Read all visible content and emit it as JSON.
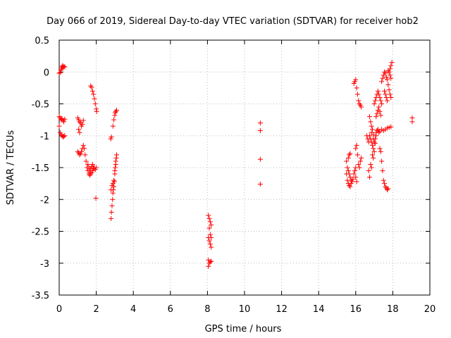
{
  "chart_data": {
    "type": "scatter",
    "title": "Day 066 of 2019, Sidereal Day-to-day VTEC variation (SDTVAR) for receiver hob2",
    "xlabel": "GPS time / hours",
    "ylabel": "SDTVAR / TECUs",
    "xlim": [
      0,
      20
    ],
    "ylim": [
      -3.5,
      0.5
    ],
    "xticks": [
      0,
      2,
      4,
      6,
      8,
      10,
      12,
      14,
      16,
      18,
      20
    ],
    "xtick_labels": [
      "0",
      "2",
      "4",
      "6",
      "8",
      "10",
      "12",
      "14",
      "16",
      "18",
      "20"
    ],
    "yticks": [
      -3.5,
      -3,
      -2.5,
      -2,
      -1.5,
      -1,
      -0.5,
      0,
      0.5
    ],
    "ytick_labels": [
      "-3.5",
      "-3",
      "-2.5",
      "-2",
      "-1.5",
      "-1",
      "-0.5",
      "0",
      "0.5"
    ],
    "grid": true,
    "marker": "+",
    "marker_color": "#ff0000",
    "series": [
      {
        "name": "SDTVAR",
        "points": [
          [
            0.0,
            -0.02
          ],
          [
            0.05,
            -0.01
          ],
          [
            0.1,
            0.03
          ],
          [
            0.15,
            0.08
          ],
          [
            0.2,
            0.07
          ],
          [
            0.25,
            0.09
          ],
          [
            0.3,
            0.08
          ],
          [
            0.12,
            0.05
          ],
          [
            0.18,
            0.1
          ],
          [
            0.0,
            -0.7
          ],
          [
            0.05,
            -0.72
          ],
          [
            0.1,
            -0.75
          ],
          [
            0.15,
            -0.73
          ],
          [
            0.2,
            -0.76
          ],
          [
            0.25,
            -0.78
          ],
          [
            0.3,
            -0.74
          ],
          [
            0.0,
            -0.85
          ],
          [
            0.05,
            -0.95
          ],
          [
            0.1,
            -0.98
          ],
          [
            0.15,
            -1.0
          ],
          [
            0.2,
            -1.02
          ],
          [
            0.25,
            -1.01
          ],
          [
            0.3,
            -1.0
          ],
          [
            1.0,
            -0.72
          ],
          [
            1.05,
            -0.75
          ],
          [
            1.1,
            -0.78
          ],
          [
            1.15,
            -0.8
          ],
          [
            1.2,
            -0.85
          ],
          [
            1.25,
            -0.82
          ],
          [
            1.3,
            -0.76
          ],
          [
            1.05,
            -0.9
          ],
          [
            1.1,
            -0.95
          ],
          [
            1.0,
            -1.25
          ],
          [
            1.05,
            -1.27
          ],
          [
            1.1,
            -1.3
          ],
          [
            1.15,
            -1.28
          ],
          [
            1.2,
            -1.25
          ],
          [
            1.25,
            -1.2
          ],
          [
            1.3,
            -1.15
          ],
          [
            1.35,
            -1.2
          ],
          [
            1.4,
            -1.3
          ],
          [
            1.45,
            -1.4
          ],
          [
            1.5,
            -1.5
          ],
          [
            1.55,
            -1.55
          ],
          [
            1.6,
            -1.6
          ],
          [
            1.65,
            -1.62
          ],
          [
            1.7,
            -1.6
          ],
          [
            1.75,
            -1.58
          ],
          [
            1.8,
            -1.55
          ],
          [
            1.85,
            -1.52
          ],
          [
            1.9,
            -1.5
          ],
          [
            1.95,
            -1.53
          ],
          [
            2.0,
            -1.5
          ],
          [
            1.55,
            -1.45
          ],
          [
            1.6,
            -1.5
          ],
          [
            1.65,
            -1.55
          ],
          [
            1.7,
            -1.52
          ],
          [
            1.75,
            -1.48
          ],
          [
            1.8,
            -1.45
          ],
          [
            1.85,
            -1.5
          ],
          [
            1.7,
            -0.22
          ],
          [
            1.75,
            -0.24
          ],
          [
            1.8,
            -0.3
          ],
          [
            1.85,
            -0.35
          ],
          [
            1.9,
            -0.42
          ],
          [
            1.95,
            -0.5
          ],
          [
            2.0,
            -0.58
          ],
          [
            2.02,
            -0.62
          ],
          [
            1.98,
            -1.98
          ],
          [
            2.8,
            -2.3
          ],
          [
            2.82,
            -2.2
          ],
          [
            2.85,
            -2.1
          ],
          [
            2.88,
            -2.0
          ],
          [
            2.9,
            -1.9
          ],
          [
            2.92,
            -1.85
          ],
          [
            2.95,
            -1.8
          ],
          [
            2.8,
            -1.85
          ],
          [
            2.85,
            -1.78
          ],
          [
            2.9,
            -1.75
          ],
          [
            2.95,
            -1.7
          ],
          [
            2.98,
            -1.72
          ],
          [
            3.0,
            -1.6
          ],
          [
            3.02,
            -1.5
          ],
          [
            3.05,
            -1.4
          ],
          [
            3.08,
            -1.35
          ],
          [
            3.1,
            -1.3
          ],
          [
            3.0,
            -1.55
          ],
          [
            3.05,
            -1.45
          ],
          [
            2.78,
            -1.05
          ],
          [
            2.82,
            -1.02
          ],
          [
            2.9,
            -0.85
          ],
          [
            2.95,
            -0.75
          ],
          [
            3.0,
            -0.68
          ],
          [
            3.05,
            -0.62
          ],
          [
            3.1,
            -0.6
          ],
          [
            3.02,
            -0.64
          ],
          [
            8.05,
            -2.25
          ],
          [
            8.1,
            -2.3
          ],
          [
            8.15,
            -2.35
          ],
          [
            8.2,
            -2.4
          ],
          [
            8.1,
            -2.45
          ],
          [
            8.15,
            -2.55
          ],
          [
            8.2,
            -2.6
          ],
          [
            8.1,
            -2.65
          ],
          [
            8.15,
            -2.7
          ],
          [
            8.2,
            -2.75
          ],
          [
            8.05,
            -2.6
          ],
          [
            8.05,
            -2.95
          ],
          [
            8.1,
            -3.0
          ],
          [
            8.15,
            -2.98
          ],
          [
            8.2,
            -2.97
          ],
          [
            8.05,
            -3.05
          ],
          [
            10.85,
            -0.8
          ],
          [
            10.85,
            -0.92
          ],
          [
            10.85,
            -1.37
          ],
          [
            10.85,
            -1.76
          ],
          [
            15.5,
            -1.4
          ],
          [
            15.55,
            -1.5
          ],
          [
            15.6,
            -1.55
          ],
          [
            15.65,
            -1.6
          ],
          [
            15.7,
            -1.65
          ],
          [
            15.75,
            -1.7
          ],
          [
            15.8,
            -1.72
          ],
          [
            15.85,
            -1.68
          ],
          [
            15.9,
            -1.6
          ],
          [
            15.95,
            -1.55
          ],
          [
            16.0,
            -1.5
          ],
          [
            15.5,
            -1.6
          ],
          [
            15.55,
            -1.7
          ],
          [
            15.6,
            -1.75
          ],
          [
            15.65,
            -1.78
          ],
          [
            15.7,
            -1.8
          ],
          [
            15.75,
            -1.75
          ],
          [
            15.6,
            -1.35
          ],
          [
            15.65,
            -1.3
          ],
          [
            15.7,
            -1.28
          ],
          [
            16.0,
            -1.2
          ],
          [
            16.05,
            -1.15
          ],
          [
            16.1,
            -1.3
          ],
          [
            16.15,
            -1.45
          ],
          [
            16.2,
            -1.5
          ],
          [
            16.25,
            -1.4
          ],
          [
            16.3,
            -1.35
          ],
          [
            16.0,
            -1.65
          ],
          [
            16.05,
            -1.72
          ],
          [
            15.9,
            -0.18
          ],
          [
            15.95,
            -0.15
          ],
          [
            16.0,
            -0.12
          ],
          [
            16.05,
            -0.25
          ],
          [
            16.1,
            -0.35
          ],
          [
            16.15,
            -0.45
          ],
          [
            16.2,
            -0.5
          ],
          [
            16.25,
            -0.52
          ],
          [
            16.3,
            -0.55
          ],
          [
            16.75,
            -0.7
          ],
          [
            16.8,
            -0.78
          ],
          [
            16.85,
            -0.85
          ],
          [
            16.9,
            -0.9
          ],
          [
            16.95,
            -0.98
          ],
          [
            16.8,
            -1.05
          ],
          [
            16.85,
            -1.1
          ],
          [
            16.9,
            -1.15
          ],
          [
            16.95,
            -1.2
          ],
          [
            17.0,
            -1.25
          ],
          [
            16.8,
            -1.45
          ],
          [
            16.85,
            -1.5
          ],
          [
            16.7,
            -1.55
          ],
          [
            16.75,
            -1.65
          ],
          [
            16.9,
            -1.3
          ],
          [
            16.95,
            -1.35
          ],
          [
            17.0,
            -1.1
          ],
          [
            17.05,
            -1.05
          ],
          [
            17.1,
            -1.0
          ],
          [
            17.0,
            -0.5
          ],
          [
            17.05,
            -0.45
          ],
          [
            17.1,
            -0.4
          ],
          [
            17.15,
            -0.35
          ],
          [
            17.2,
            -0.3
          ],
          [
            17.25,
            -0.35
          ],
          [
            17.3,
            -0.4
          ],
          [
            17.35,
            -0.45
          ],
          [
            17.4,
            -0.5
          ],
          [
            17.1,
            -0.7
          ],
          [
            17.15,
            -0.65
          ],
          [
            17.2,
            -0.6
          ],
          [
            17.25,
            -0.55
          ],
          [
            17.3,
            -0.62
          ],
          [
            17.35,
            -0.68
          ],
          [
            17.1,
            -0.95
          ],
          [
            17.15,
            -0.92
          ],
          [
            17.2,
            -0.9
          ],
          [
            17.25,
            -0.95
          ],
          [
            17.3,
            -0.93
          ],
          [
            17.4,
            -0.9
          ],
          [
            17.5,
            -0.92
          ],
          [
            17.6,
            -0.9
          ],
          [
            17.7,
            -0.88
          ],
          [
            17.8,
            -0.87
          ],
          [
            17.9,
            -0.86
          ],
          [
            17.3,
            -1.2
          ],
          [
            17.35,
            -1.25
          ],
          [
            17.4,
            -1.4
          ],
          [
            17.45,
            -1.55
          ],
          [
            17.5,
            -1.7
          ],
          [
            17.55,
            -1.75
          ],
          [
            17.6,
            -1.8
          ],
          [
            17.65,
            -1.82
          ],
          [
            17.7,
            -1.85
          ],
          [
            17.75,
            -1.83
          ],
          [
            17.4,
            -0.15
          ],
          [
            17.45,
            -0.1
          ],
          [
            17.5,
            -0.05
          ],
          [
            17.55,
            0.0
          ],
          [
            17.6,
            -0.02
          ],
          [
            17.65,
            -0.08
          ],
          [
            17.7,
            -0.12
          ],
          [
            17.75,
            -0.2
          ],
          [
            17.8,
            -0.28
          ],
          [
            17.85,
            -0.35
          ],
          [
            17.9,
            -0.4
          ],
          [
            17.55,
            -0.3
          ],
          [
            17.6,
            -0.35
          ],
          [
            17.65,
            -0.4
          ],
          [
            17.7,
            -0.45
          ],
          [
            17.8,
            0.0
          ],
          [
            17.85,
            0.05
          ],
          [
            17.9,
            0.1
          ],
          [
            17.95,
            0.15
          ],
          [
            17.85,
            -0.05
          ],
          [
            17.9,
            -0.1
          ],
          [
            17.75,
            0.02
          ],
          [
            16.6,
            -1.0
          ],
          [
            16.65,
            -1.05
          ],
          [
            16.7,
            -1.1
          ],
          [
            16.75,
            -1.0
          ],
          [
            16.85,
            -0.95
          ],
          [
            16.95,
            -1.05
          ],
          [
            17.05,
            -1.12
          ],
          [
            19.05,
            -0.72
          ],
          [
            19.05,
            -0.78
          ]
        ]
      }
    ]
  }
}
